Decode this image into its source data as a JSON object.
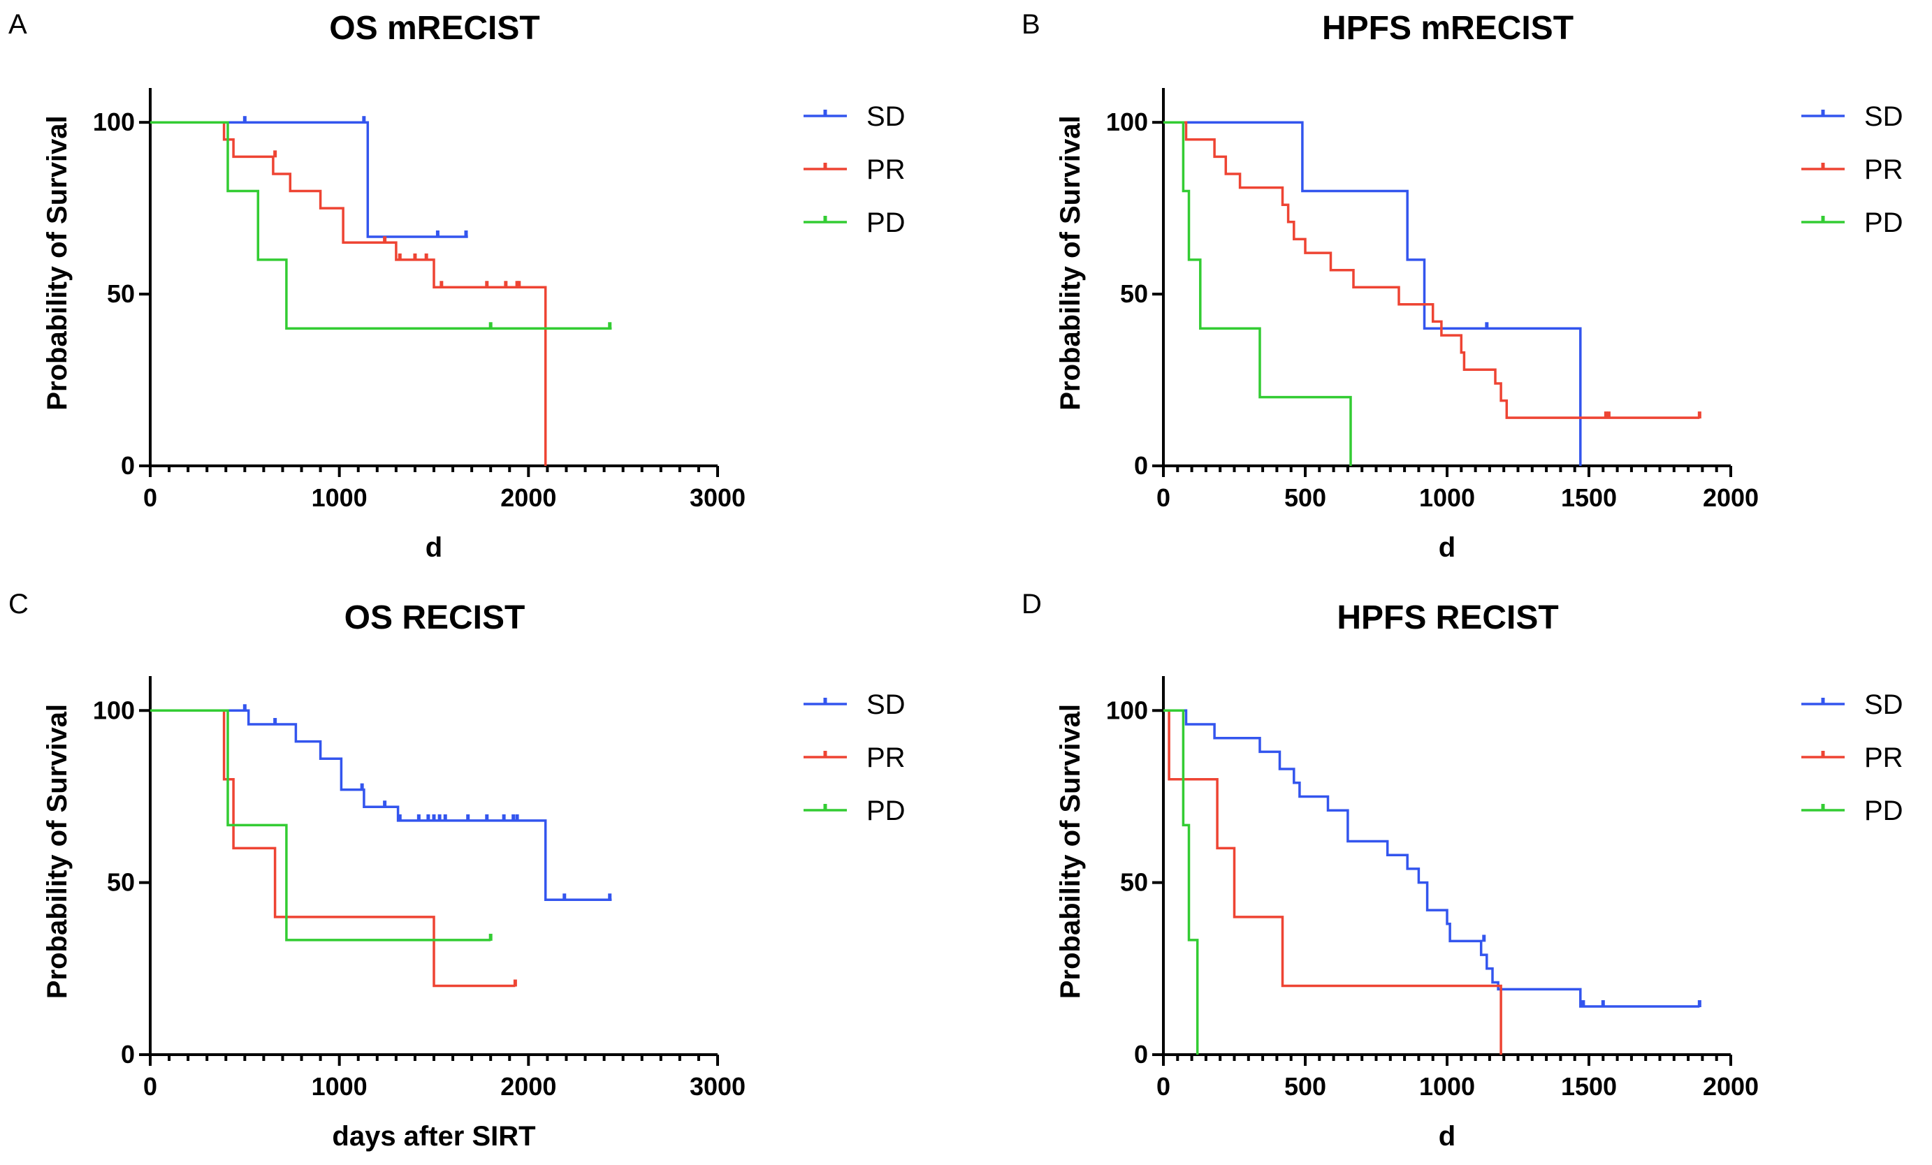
{
  "chart_data": [
    {
      "panel": "A",
      "type": "line",
      "title": "OS mRECIST",
      "xlabel": "d",
      "ylabel": "Probability of Survival",
      "xlim": [
        0,
        3000
      ],
      "ylim": [
        0,
        110
      ],
      "xticks": [
        0,
        1000,
        2000,
        3000
      ],
      "yticks": [
        0,
        50,
        100
      ],
      "legend_position": "right",
      "series": [
        {
          "name": "SD",
          "color": "#3355ee",
          "steps": [
            [
              0,
              100
            ],
            [
              1150,
              100
            ],
            [
              1150,
              66.7
            ],
            [
              1680,
              66.7
            ]
          ],
          "censors": [
            [
              500,
              100
            ],
            [
              1130,
              100
            ],
            [
              1520,
              66.7
            ],
            [
              1670,
              66.7
            ]
          ]
        },
        {
          "name": "PR",
          "color": "#ee4433",
          "steps": [
            [
              0,
              100
            ],
            [
              390,
              100
            ],
            [
              390,
              95
            ],
            [
              440,
              95
            ],
            [
              440,
              90
            ],
            [
              650,
              90
            ],
            [
              650,
              85
            ],
            [
              740,
              85
            ],
            [
              740,
              80
            ],
            [
              900,
              80
            ],
            [
              900,
              75
            ],
            [
              1020,
              75
            ],
            [
              1020,
              65
            ],
            [
              1300,
              65
            ],
            [
              1300,
              60
            ],
            [
              1500,
              60
            ],
            [
              1500,
              52
            ],
            [
              2090,
              52
            ],
            [
              2090,
              0
            ]
          ],
          "censors": [
            [
              660,
              90
            ],
            [
              1240,
              65
            ],
            [
              1320,
              60
            ],
            [
              1400,
              60
            ],
            [
              1460,
              60
            ],
            [
              1540,
              52
            ],
            [
              1780,
              52
            ],
            [
              1880,
              52
            ],
            [
              1940,
              52
            ],
            [
              1950,
              52
            ]
          ]
        },
        {
          "name": "PD",
          "color": "#33cc33",
          "steps": [
            [
              0,
              100
            ],
            [
              410,
              100
            ],
            [
              410,
              80
            ],
            [
              570,
              80
            ],
            [
              570,
              60
            ],
            [
              720,
              60
            ],
            [
              720,
              40
            ],
            [
              2440,
              40
            ]
          ],
          "censors": [
            [
              1800,
              40
            ],
            [
              2430,
              40
            ]
          ]
        }
      ]
    },
    {
      "panel": "B",
      "type": "line",
      "title": "HPFS mRECIST",
      "xlabel": "d",
      "ylabel": "Probability of Survival",
      "xlim": [
        0,
        2000
      ],
      "ylim": [
        0,
        110
      ],
      "xticks": [
        0,
        500,
        1000,
        1500,
        2000
      ],
      "yticks": [
        0,
        50,
        100
      ],
      "legend_position": "right",
      "series": [
        {
          "name": "SD",
          "color": "#3355ee",
          "steps": [
            [
              0,
              100
            ],
            [
              490,
              100
            ],
            [
              490,
              80
            ],
            [
              860,
              80
            ],
            [
              860,
              60
            ],
            [
              920,
              60
            ],
            [
              920,
              40
            ],
            [
              1470,
              40
            ],
            [
              1470,
              0
            ]
          ],
          "censors": [
            [
              1140,
              40
            ]
          ]
        },
        {
          "name": "PR",
          "color": "#ee4433",
          "steps": [
            [
              0,
              100
            ],
            [
              80,
              100
            ],
            [
              80,
              95
            ],
            [
              180,
              95
            ],
            [
              180,
              90
            ],
            [
              220,
              90
            ],
            [
              220,
              85
            ],
            [
              270,
              85
            ],
            [
              270,
              81
            ],
            [
              420,
              81
            ],
            [
              420,
              76
            ],
            [
              440,
              76
            ],
            [
              440,
              71
            ],
            [
              460,
              71
            ],
            [
              460,
              66
            ],
            [
              500,
              66
            ],
            [
              500,
              62
            ],
            [
              590,
              62
            ],
            [
              590,
              57
            ],
            [
              670,
              57
            ],
            [
              670,
              52
            ],
            [
              830,
              52
            ],
            [
              830,
              47
            ],
            [
              950,
              47
            ],
            [
              950,
              42
            ],
            [
              980,
              42
            ],
            [
              980,
              38
            ],
            [
              1050,
              38
            ],
            [
              1050,
              33
            ],
            [
              1060,
              33
            ],
            [
              1060,
              28
            ],
            [
              1170,
              28
            ],
            [
              1170,
              24
            ],
            [
              1190,
              24
            ],
            [
              1190,
              19
            ],
            [
              1210,
              19
            ],
            [
              1210,
              14
            ],
            [
              1890,
              14
            ]
          ],
          "censors": [
            [
              1560,
              14
            ],
            [
              1570,
              14
            ],
            [
              1890,
              14
            ]
          ]
        },
        {
          "name": "PD",
          "color": "#33cc33",
          "steps": [
            [
              0,
              100
            ],
            [
              70,
              100
            ],
            [
              70,
              80
            ],
            [
              90,
              80
            ],
            [
              90,
              60
            ],
            [
              130,
              60
            ],
            [
              130,
              40
            ],
            [
              340,
              40
            ],
            [
              340,
              20
            ],
            [
              660,
              20
            ],
            [
              660,
              0
            ]
          ],
          "censors": []
        }
      ]
    },
    {
      "panel": "C",
      "type": "line",
      "title": "OS RECIST",
      "xlabel": "days after SIRT",
      "ylabel": "Probability of Survival",
      "xlim": [
        0,
        3000
      ],
      "ylim": [
        0,
        110
      ],
      "xticks": [
        0,
        1000,
        2000,
        3000
      ],
      "yticks": [
        0,
        50,
        100
      ],
      "legend_position": "right",
      "series": [
        {
          "name": "SD",
          "color": "#3355ee",
          "steps": [
            [
              0,
              100
            ],
            [
              520,
              100
            ],
            [
              520,
              96
            ],
            [
              770,
              96
            ],
            [
              770,
              91
            ],
            [
              900,
              91
            ],
            [
              900,
              86
            ],
            [
              1010,
              86
            ],
            [
              1010,
              77
            ],
            [
              1130,
              77
            ],
            [
              1130,
              72
            ],
            [
              1310,
              72
            ],
            [
              1310,
              68
            ],
            [
              2090,
              68
            ],
            [
              2090,
              45
            ],
            [
              2440,
              45
            ]
          ],
          "censors": [
            [
              500,
              100
            ],
            [
              660,
              96
            ],
            [
              1120,
              77
            ],
            [
              1240,
              72
            ],
            [
              1320,
              68
            ],
            [
              1420,
              68
            ],
            [
              1470,
              68
            ],
            [
              1500,
              68
            ],
            [
              1530,
              68
            ],
            [
              1560,
              68
            ],
            [
              1680,
              68
            ],
            [
              1780,
              68
            ],
            [
              1870,
              68
            ],
            [
              1920,
              68
            ],
            [
              1940,
              68
            ],
            [
              2190,
              45
            ],
            [
              2430,
              45
            ]
          ]
        },
        {
          "name": "PR",
          "color": "#ee4433",
          "steps": [
            [
              0,
              100
            ],
            [
              390,
              100
            ],
            [
              390,
              80
            ],
            [
              440,
              80
            ],
            [
              440,
              60
            ],
            [
              660,
              60
            ],
            [
              660,
              40
            ],
            [
              1500,
              40
            ],
            [
              1500,
              20
            ],
            [
              1930,
              20
            ]
          ],
          "censors": [
            [
              1930,
              20
            ]
          ]
        },
        {
          "name": "PD",
          "color": "#33cc33",
          "steps": [
            [
              0,
              100
            ],
            [
              410,
              100
            ],
            [
              410,
              66.7
            ],
            [
              720,
              66.7
            ],
            [
              720,
              33.3
            ],
            [
              1800,
              33.3
            ]
          ],
          "censors": [
            [
              1800,
              33.3
            ]
          ]
        }
      ]
    },
    {
      "panel": "D",
      "type": "line",
      "title": "HPFS RECIST",
      "xlabel": "d",
      "ylabel": "Probability of Survival",
      "xlim": [
        0,
        2000
      ],
      "ylim": [
        0,
        110
      ],
      "xticks": [
        0,
        500,
        1000,
        1500,
        2000
      ],
      "yticks": [
        0,
        50,
        100
      ],
      "legend_position": "right",
      "series": [
        {
          "name": "SD",
          "color": "#3355ee",
          "steps": [
            [
              0,
              100
            ],
            [
              80,
              100
            ],
            [
              80,
              96
            ],
            [
              180,
              96
            ],
            [
              180,
              92
            ],
            [
              340,
              92
            ],
            [
              340,
              88
            ],
            [
              410,
              88
            ],
            [
              410,
              83
            ],
            [
              460,
              83
            ],
            [
              460,
              79
            ],
            [
              480,
              79
            ],
            [
              480,
              75
            ],
            [
              580,
              75
            ],
            [
              580,
              71
            ],
            [
              650,
              71
            ],
            [
              650,
              62
            ],
            [
              790,
              62
            ],
            [
              790,
              58
            ],
            [
              860,
              58
            ],
            [
              860,
              54
            ],
            [
              900,
              54
            ],
            [
              900,
              50
            ],
            [
              930,
              50
            ],
            [
              930,
              42
            ],
            [
              1000,
              42
            ],
            [
              1000,
              38
            ],
            [
              1010,
              38
            ],
            [
              1010,
              33
            ],
            [
              1120,
              33
            ],
            [
              1120,
              29
            ],
            [
              1140,
              29
            ],
            [
              1140,
              25
            ],
            [
              1160,
              25
            ],
            [
              1160,
              21
            ],
            [
              1180,
              21
            ],
            [
              1180,
              19
            ],
            [
              1470,
              19
            ],
            [
              1470,
              14
            ],
            [
              1890,
              14
            ]
          ],
          "censors": [
            [
              1130,
              33
            ],
            [
              1480,
              14
            ],
            [
              1550,
              14
            ],
            [
              1890,
              14
            ]
          ]
        },
        {
          "name": "PR",
          "color": "#ee4433",
          "steps": [
            [
              0,
              100
            ],
            [
              20,
              100
            ],
            [
              20,
              80
            ],
            [
              190,
              80
            ],
            [
              190,
              60
            ],
            [
              250,
              60
            ],
            [
              250,
              40
            ],
            [
              420,
              40
            ],
            [
              420,
              20
            ],
            [
              1190,
              20
            ],
            [
              1190,
              0
            ]
          ],
          "censors": []
        },
        {
          "name": "PD",
          "color": "#33cc33",
          "steps": [
            [
              0,
              100
            ],
            [
              70,
              100
            ],
            [
              70,
              66.7
            ],
            [
              90,
              66.7
            ],
            [
              90,
              33.3
            ],
            [
              120,
              33.3
            ],
            [
              120,
              0
            ]
          ],
          "censors": []
        }
      ]
    }
  ]
}
